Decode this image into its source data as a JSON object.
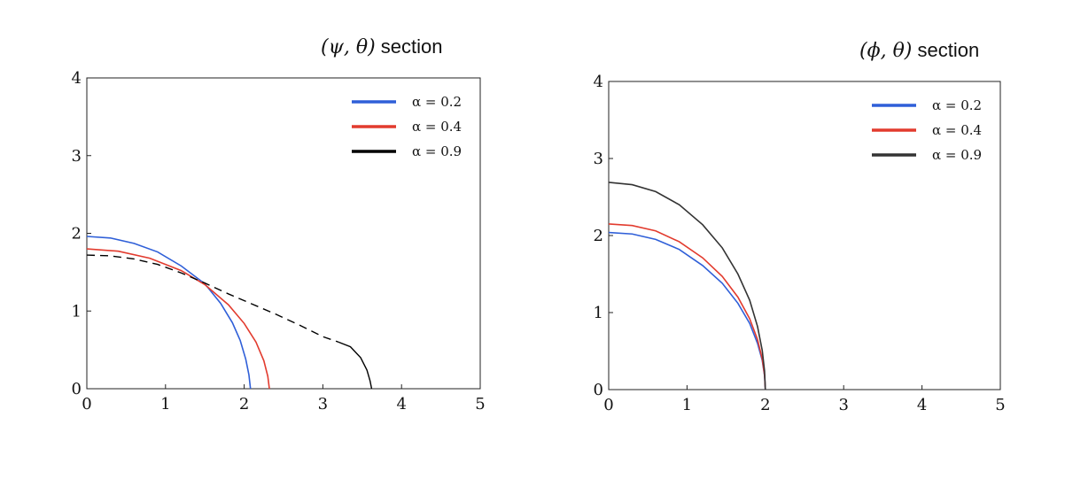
{
  "chart_data": [
    {
      "type": "line",
      "title_prefix": "(ψ, θ)",
      "title_suffix": "section",
      "xlabel": "",
      "ylabel": "",
      "xlim": [
        0,
        5
      ],
      "ylim": [
        0,
        4
      ],
      "x_ticks": [
        "0",
        "1",
        "2",
        "3",
        "4",
        "5"
      ],
      "y_ticks": [
        "0",
        "1",
        "2",
        "3",
        "4"
      ],
      "legend_position": "top-right",
      "series": [
        {
          "name": "α = 0.2",
          "color": "#2f5fd8",
          "x": [
            0,
            0.3,
            0.6,
            0.9,
            1.2,
            1.5,
            1.7,
            1.85,
            1.95,
            2.02,
            2.06,
            2.08
          ],
          "y": [
            1.96,
            1.94,
            1.87,
            1.76,
            1.58,
            1.35,
            1.1,
            0.85,
            0.62,
            0.38,
            0.18,
            0.0
          ]
        },
        {
          "name": "α = 0.4",
          "color": "#e23b2e",
          "x": [
            0,
            0.4,
            0.8,
            1.2,
            1.5,
            1.8,
            2.0,
            2.15,
            2.25,
            2.3,
            2.32
          ],
          "y": [
            1.8,
            1.77,
            1.68,
            1.52,
            1.34,
            1.08,
            0.84,
            0.6,
            0.36,
            0.16,
            0.0
          ]
        },
        {
          "name": "α = 0.9",
          "color": "#000000",
          "x": [
            0,
            0.3,
            0.6,
            0.9,
            1.2,
            1.5,
            1.8,
            2.1,
            2.4,
            2.7,
            3.0,
            3.2,
            3.35,
            3.48,
            3.56,
            3.6,
            3.62
          ],
          "y": [
            1.72,
            1.71,
            1.67,
            1.6,
            1.49,
            1.36,
            1.22,
            1.09,
            0.96,
            0.82,
            0.67,
            0.6,
            0.54,
            0.4,
            0.24,
            0.1,
            0.0
          ],
          "dash_until_x": 3.2
        }
      ]
    },
    {
      "type": "line",
      "title_prefix": "(ϕ, θ)",
      "title_suffix": "section",
      "xlabel": "",
      "ylabel": "",
      "xlim": [
        0,
        5
      ],
      "ylim": [
        0,
        4
      ],
      "x_ticks": [
        "0",
        "1",
        "2",
        "3",
        "4",
        "5"
      ],
      "y_ticks": [
        "0",
        "1",
        "2",
        "3",
        "4"
      ],
      "legend_position": "top-right",
      "series": [
        {
          "name": "α = 0.2",
          "color": "#2f5fd8",
          "x": [
            0,
            0.3,
            0.6,
            0.9,
            1.2,
            1.45,
            1.65,
            1.8,
            1.9,
            1.96,
            1.99,
            2.0
          ],
          "y": [
            2.04,
            2.02,
            1.95,
            1.82,
            1.61,
            1.38,
            1.12,
            0.86,
            0.6,
            0.38,
            0.18,
            0.0
          ]
        },
        {
          "name": "α = 0.4",
          "color": "#e23b2e",
          "x": [
            0,
            0.3,
            0.6,
            0.9,
            1.2,
            1.45,
            1.65,
            1.8,
            1.9,
            1.96,
            1.99,
            2.0
          ],
          "y": [
            2.15,
            2.13,
            2.06,
            1.92,
            1.71,
            1.47,
            1.2,
            0.92,
            0.65,
            0.4,
            0.19,
            0.0
          ]
        },
        {
          "name": "α = 0.9",
          "color": "#333333",
          "x": [
            0,
            0.3,
            0.6,
            0.9,
            1.2,
            1.45,
            1.65,
            1.8,
            1.9,
            1.96,
            1.99,
            2.0
          ],
          "y": [
            2.69,
            2.66,
            2.57,
            2.4,
            2.14,
            1.84,
            1.5,
            1.16,
            0.82,
            0.51,
            0.24,
            0.0
          ]
        }
      ]
    }
  ]
}
